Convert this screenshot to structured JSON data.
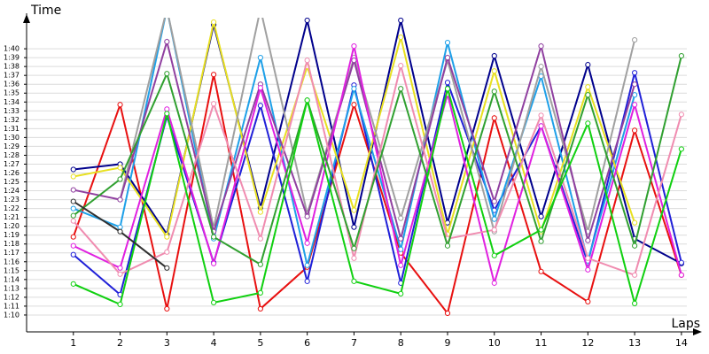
{
  "chart_data": {
    "type": "line",
    "y_label": "Time",
    "x_label": "Laps",
    "x": [
      1,
      2,
      3,
      4,
      5,
      6,
      7,
      8,
      9,
      10,
      11,
      12,
      13,
      14
    ],
    "xlim": [
      0,
      14.4
    ],
    "xticks": [
      1,
      2,
      3,
      4,
      5,
      6,
      7,
      8,
      9,
      10,
      11,
      12,
      13,
      14
    ],
    "ylim": [
      68.1,
      103.5
    ],
    "yticks": [
      {
        "value": 70,
        "label": "1:10"
      },
      {
        "value": 71,
        "label": "1:11"
      },
      {
        "value": 72,
        "label": "1:12"
      },
      {
        "value": 73,
        "label": "1:13"
      },
      {
        "value": 74,
        "label": "1:14"
      },
      {
        "value": 75,
        "label": "1:15"
      },
      {
        "value": 76,
        "label": "1:16"
      },
      {
        "value": 77,
        "label": "1:17"
      },
      {
        "value": 78,
        "label": "1:18"
      },
      {
        "value": 79,
        "label": "1:19"
      },
      {
        "value": 80,
        "label": "1:20"
      },
      {
        "value": 81,
        "label": "1:21"
      },
      {
        "value": 82,
        "label": "1:22"
      },
      {
        "value": 83,
        "label": "1:23"
      },
      {
        "value": 84,
        "label": "1:24"
      },
      {
        "value": 85,
        "label": "1:25"
      },
      {
        "value": 86,
        "label": "1:26"
      },
      {
        "value": 87,
        "label": "1:27"
      },
      {
        "value": 88,
        "label": "1:28"
      },
      {
        "value": 89,
        "label": "1:29"
      },
      {
        "value": 90,
        "label": "1:30"
      },
      {
        "value": 91,
        "label": "1:31"
      },
      {
        "value": 92,
        "label": "1:32"
      },
      {
        "value": 93,
        "label": "1:33"
      },
      {
        "value": 94,
        "label": "1:34"
      },
      {
        "value": 95,
        "label": "1:35"
      },
      {
        "value": 96,
        "label": "1:36"
      },
      {
        "value": 97,
        "label": "1:37"
      },
      {
        "value": 98,
        "label": "1:38"
      },
      {
        "value": 99,
        "label": "1:39"
      },
      {
        "value": 100,
        "label": "1:40"
      }
    ],
    "grid": true,
    "series": [
      {
        "color": "#e81010",
        "values": [
          78.8,
          93.7,
          70.7,
          97.1,
          70.7,
          75.4,
          93.7,
          77.0,
          70.2,
          92.2,
          74.9,
          71.5,
          90.8,
          74.5
        ]
      },
      {
        "color": "#00008c",
        "values": [
          86.4,
          87.0,
          79.1,
          102.7,
          82.1,
          103.2,
          79.9,
          103.2,
          80.4,
          99.2,
          81.1,
          98.2,
          78.6,
          75.8
        ]
      },
      {
        "color": "#2020d8",
        "values": [
          76.8,
          72.3,
          92.4,
          75.9,
          93.6,
          73.8,
          95.9,
          73.6,
          96.2,
          81.8,
          91.3,
          75.9,
          97.3,
          75.9
        ]
      },
      {
        "color": "#1ea0e8",
        "values": [
          82.0,
          79.9,
          104.5,
          78.6,
          99.0,
          75.6,
          95.5,
          77.4,
          100.7,
          80.8,
          96.9,
          76.1,
          94.8,
          null
        ]
      },
      {
        "color": "#e8e020",
        "values": [
          85.6,
          86.6,
          78.8,
          103.0,
          81.6,
          98.0,
          81.8,
          101.3,
          79.1,
          97.5,
          79.4,
          95.7,
          80.4,
          null
        ]
      },
      {
        "color": "#a0a0a0",
        "values": [
          null,
          83.0,
          104.5,
          79.8,
          104.5,
          81.4,
          99.0,
          80.9,
          98.7,
          79.4,
          98.0,
          79.4,
          101.0,
          null
        ]
      },
      {
        "color": "#9040a0",
        "values": [
          84.1,
          83.0,
          100.8,
          79.4,
          96.0,
          81.1,
          98.7,
          78.6,
          99.0,
          82.8,
          100.3,
          78.4,
          96.0,
          null
        ]
      },
      {
        "color": "#e020e0",
        "values": [
          77.8,
          75.3,
          93.2,
          75.8,
          95.6,
          78.1,
          100.3,
          75.6,
          94.9,
          73.6,
          91.3,
          75.1,
          93.7,
          74.5
        ]
      },
      {
        "color": "#f08cb0",
        "values": [
          80.6,
          74.6,
          77.1,
          93.8,
          78.6,
          98.7,
          76.4,
          98.1,
          78.6,
          79.6,
          92.5,
          76.4,
          74.5,
          92.6
        ]
      },
      {
        "color": "#30a030",
        "values": [
          81.2,
          85.3,
          97.2,
          78.8,
          75.7,
          94.2,
          77.5,
          95.5,
          77.8,
          95.2,
          78.3,
          94.8,
          77.8,
          99.2
        ]
      },
      {
        "color": "#10d010",
        "values": [
          73.5,
          71.2,
          92.7,
          71.4,
          72.5,
          94.2,
          73.8,
          72.4,
          95.5,
          76.7,
          79.6,
          91.6,
          71.3,
          88.7
        ]
      },
      {
        "color": "#303030",
        "values": [
          82.8,
          79.4,
          75.3,
          null,
          null,
          null,
          null,
          null,
          null,
          null,
          null,
          null,
          null,
          null
        ]
      }
    ]
  }
}
